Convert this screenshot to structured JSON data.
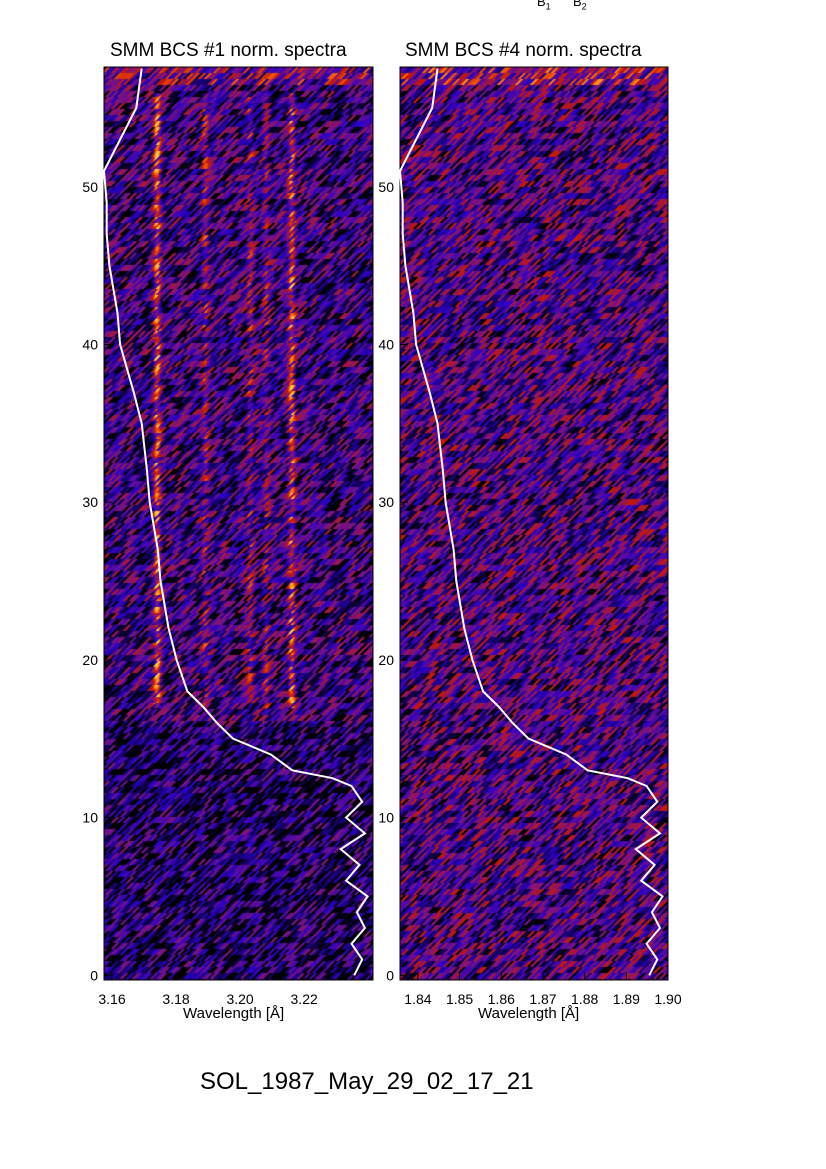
{
  "header_labels": {
    "b1": "B",
    "b1_sub": "1",
    "b2": "B",
    "b2_sub": "2"
  },
  "footer": "SOL_1987_May_29_02_17_21",
  "chart_data": [
    {
      "type": "heatmap",
      "title": "SMM BCS #1 norm. spectra",
      "xlabel": "Wavelength [Å]",
      "ylabel": "",
      "xlim": [
        3.1575,
        3.2415
      ],
      "ylim": [
        -0.3,
        57.6
      ],
      "xticks": [
        "3.16",
        "3.18",
        "3.20",
        "3.22"
      ],
      "yticks": [
        "0",
        "10",
        "20",
        "30",
        "40",
        "50"
      ],
      "colormap": [
        "#000000",
        "#2a00c8",
        "#c81800",
        "#ff6a00",
        "#ffd040"
      ],
      "spectral_lines": [
        {
          "wavelength": 3.174,
          "strength": 1.0
        },
        {
          "wavelength": 3.189,
          "strength": 0.5
        },
        {
          "wavelength": 3.203,
          "strength": 0.45
        },
        {
          "wavelength": 3.208,
          "strength": 0.4
        },
        {
          "wavelength": 3.216,
          "strength": 0.9
        }
      ],
      "line_time_range": [
        17,
        56
      ],
      "overlay_color": "#ffffff"
    },
    {
      "type": "heatmap",
      "title": "SMM BCS #4 norm. spectra",
      "xlabel": "Wavelength [Å]",
      "ylabel": "",
      "xlim": [
        1.8357,
        1.9
      ],
      "ylim": [
        -0.3,
        57.6
      ],
      "xticks": [
        "1.84",
        "1.85",
        "1.86",
        "1.87",
        "1.88",
        "1.89",
        "1.90"
      ],
      "yticks": [
        "0",
        "10",
        "20",
        "30",
        "40",
        "50"
      ],
      "colormap": [
        "#000000",
        "#2a00c8",
        "#c81800",
        "#ff6a00",
        "#ffd040"
      ],
      "spectral_lines": [],
      "overlay_color": "#ffffff"
    }
  ],
  "light_curve": {
    "time": [
      57.5,
      55,
      53,
      51,
      49,
      47,
      45,
      42,
      40,
      37,
      35,
      32,
      30,
      27,
      25,
      22,
      20,
      18,
      17,
      16,
      15,
      14.5,
      14,
      13,
      12.5,
      12,
      11,
      10,
      9,
      8,
      7,
      6,
      5,
      4,
      3,
      2,
      1,
      0
    ],
    "flux": [
      0.14,
      0.12,
      0.06,
      0.0,
      0.01,
      0.01,
      0.02,
      0.05,
      0.06,
      0.11,
      0.14,
      0.16,
      0.17,
      0.2,
      0.21,
      0.24,
      0.27,
      0.31,
      0.37,
      0.42,
      0.48,
      0.55,
      0.62,
      0.7,
      0.85,
      0.92,
      0.96,
      0.9,
      0.97,
      0.88,
      0.95,
      0.9,
      0.98,
      0.94,
      0.97,
      0.92,
      0.96,
      0.93
    ]
  }
}
